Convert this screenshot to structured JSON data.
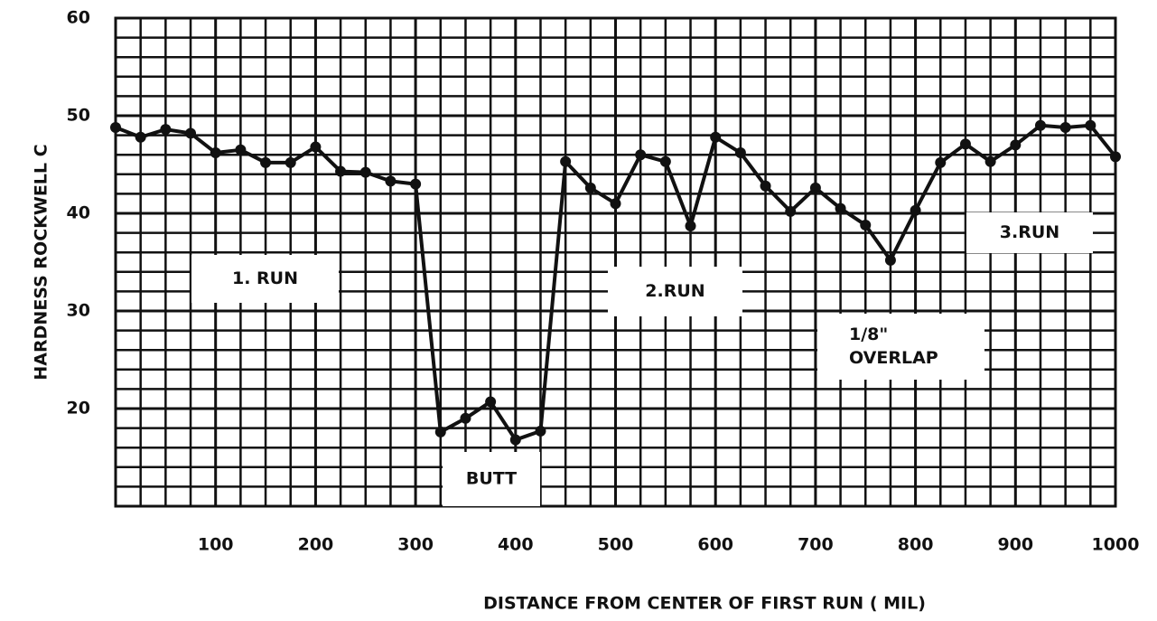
{
  "chart_data": {
    "type": "line",
    "xlabel": "DISTANCE FROM CENTER OF FIRST RUN  ( MIL)",
    "ylabel": "HARDNESS  ROCKWELL  C",
    "x": [
      0,
      25,
      50,
      75,
      100,
      125,
      150,
      175,
      200,
      225,
      250,
      275,
      300,
      325,
      350,
      375,
      400,
      425,
      450,
      475,
      500,
      525,
      550,
      575,
      600,
      625,
      650,
      675,
      700,
      725,
      750,
      775,
      800,
      825,
      850,
      875,
      900,
      925,
      950,
      975,
      1000
    ],
    "series": [
      {
        "color": "#111111",
        "values": [
          48.8,
          47.8,
          48.6,
          48.2,
          46.2,
          46.5,
          45.2,
          45.2,
          46.8,
          44.3,
          44.2,
          43.3,
          43,
          17.6,
          19,
          20.7,
          16.8,
          17.7,
          45.3,
          42.6,
          41,
          46,
          45.3,
          38.7,
          47.8,
          46.2,
          42.8,
          40.2,
          42.6,
          40.5,
          38.8,
          35.2,
          40.3,
          45.2,
          47.1,
          45.3,
          47,
          49,
          48.8,
          49,
          45.8
        ]
      }
    ],
    "xlim": [
      0,
      1000
    ],
    "xticks": [
      100,
      200,
      300,
      400,
      500,
      600,
      700,
      800,
      900,
      1000
    ],
    "ylim": [
      10,
      60
    ],
    "yticks": [
      20,
      30,
      40,
      50,
      60
    ],
    "grid": true,
    "annotations": [
      {
        "lines": [
          "1. RUN"
        ]
      },
      {
        "lines": [
          "BUTT"
        ]
      },
      {
        "lines": [
          "2.RUN"
        ]
      },
      {
        "lines": [
          "1/8\"",
          "OVERLAP"
        ]
      },
      {
        "lines": [
          "3.RUN"
        ]
      }
    ]
  }
}
